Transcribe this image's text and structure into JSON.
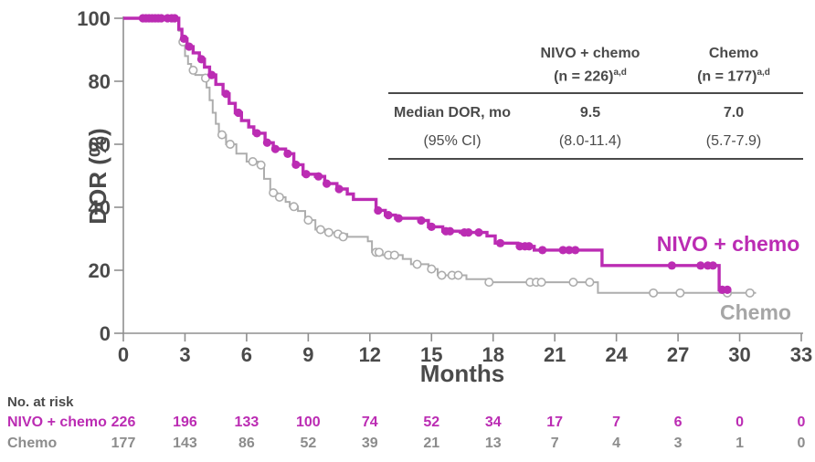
{
  "colors": {
    "nivo_magenta": "#BB2CB3",
    "chemo_curve_gray": "#ADADAD",
    "chemo_label_gray": "#A6A6A6",
    "risk_chemo_gray": "#8C8C8C",
    "axis_line_gray": "#8F8F8F",
    "text_dark_gray": "#4A4A4A"
  },
  "chart_data": {
    "type": "line",
    "subtype": "kaplan-meier-step",
    "xlabel": "Months",
    "ylabel": "DOR (%)",
    "xlim": [
      0,
      33
    ],
    "ylim": [
      0,
      100
    ],
    "xticks": [
      0,
      3,
      6,
      9,
      12,
      15,
      18,
      21,
      24,
      27,
      30,
      33
    ],
    "yticks": [
      0,
      20,
      40,
      60,
      80,
      100
    ],
    "grid": "off",
    "legend": "inline-labels-right",
    "series": [
      {
        "name": "Chemo",
        "color": "#ADADAD",
        "marker": "open-circle",
        "line_width": 2,
        "steps": [
          [
            0,
            100
          ],
          [
            2.6,
            100
          ],
          [
            2.7,
            96
          ],
          [
            2.85,
            92.5
          ],
          [
            3.0,
            88
          ],
          [
            3.15,
            85.5
          ],
          [
            3.3,
            83.5
          ],
          [
            3.5,
            82
          ],
          [
            3.9,
            81
          ],
          [
            4.05,
            78
          ],
          [
            4.2,
            74
          ],
          [
            4.35,
            70
          ],
          [
            4.5,
            66.5
          ],
          [
            4.65,
            63
          ],
          [
            5.0,
            60
          ],
          [
            5.5,
            57
          ],
          [
            6.0,
            54.5
          ],
          [
            6.55,
            53.4
          ],
          [
            6.85,
            49
          ],
          [
            7.15,
            44.6
          ],
          [
            7.5,
            43.2
          ],
          [
            7.9,
            41.7
          ],
          [
            8.1,
            40.2
          ],
          [
            8.5,
            38.8
          ],
          [
            8.85,
            35.9
          ],
          [
            9.35,
            32.9
          ],
          [
            9.9,
            32
          ],
          [
            10.3,
            31.5
          ],
          [
            10.9,
            30.6
          ],
          [
            11.9,
            29.2
          ],
          [
            12.1,
            25.7
          ],
          [
            12.6,
            24.8
          ],
          [
            13.6,
            23.6
          ],
          [
            14.0,
            21.9
          ],
          [
            14.85,
            20.4
          ],
          [
            15.3,
            18.4
          ],
          [
            16.7,
            17.2
          ],
          [
            17.9,
            16.2
          ],
          [
            23.1,
            12.8
          ],
          [
            30.8,
            12.8
          ]
        ],
        "censors": [
          [
            2.9,
            92.5
          ],
          [
            3.4,
            83.5
          ],
          [
            4.0,
            81
          ],
          [
            4.8,
            63
          ],
          [
            5.2,
            60
          ],
          [
            6.3,
            54.5
          ],
          [
            6.7,
            53.4
          ],
          [
            7.3,
            44.6
          ],
          [
            7.6,
            43.2
          ],
          [
            8.3,
            40.2
          ],
          [
            9.0,
            35.9
          ],
          [
            9.6,
            32.9
          ],
          [
            10.0,
            32
          ],
          [
            10.45,
            31.5
          ],
          [
            10.7,
            30.6
          ],
          [
            12.3,
            25.7
          ],
          [
            12.45,
            25.7
          ],
          [
            12.9,
            24.8
          ],
          [
            13.2,
            24.8
          ],
          [
            14.3,
            21.9
          ],
          [
            15.0,
            20.4
          ],
          [
            15.5,
            18.4
          ],
          [
            16.0,
            18.4
          ],
          [
            16.3,
            18.4
          ],
          [
            17.8,
            16.2
          ],
          [
            19.8,
            16.2
          ],
          [
            20.1,
            16.2
          ],
          [
            20.35,
            16.2
          ],
          [
            21.9,
            16.2
          ],
          [
            22.7,
            16.2
          ],
          [
            25.8,
            12.8
          ],
          [
            27.1,
            12.8
          ],
          [
            29.4,
            12.8
          ],
          [
            30.5,
            12.8
          ]
        ]
      },
      {
        "name": "NIVO + chemo",
        "color": "#BB2CB3",
        "marker": "filled-circle",
        "line_width": 3.4,
        "steps": [
          [
            0,
            100
          ],
          [
            2.6,
            100
          ],
          [
            2.7,
            96.5
          ],
          [
            2.85,
            93.5
          ],
          [
            3.1,
            91
          ],
          [
            3.4,
            89
          ],
          [
            3.7,
            87
          ],
          [
            3.95,
            84.5
          ],
          [
            4.2,
            82
          ],
          [
            4.5,
            79
          ],
          [
            4.85,
            76
          ],
          [
            5.15,
            73
          ],
          [
            5.45,
            70
          ],
          [
            5.75,
            67.5
          ],
          [
            6.1,
            65.5
          ],
          [
            6.35,
            63.5
          ],
          [
            6.9,
            60.5
          ],
          [
            7.3,
            58.5
          ],
          [
            7.9,
            57
          ],
          [
            8.3,
            53.5
          ],
          [
            8.75,
            50.5
          ],
          [
            9.35,
            49.8
          ],
          [
            9.8,
            47.5
          ],
          [
            10.4,
            45.8
          ],
          [
            10.9,
            44.2
          ],
          [
            11.2,
            42.5
          ],
          [
            12.3,
            39
          ],
          [
            12.75,
            37.5
          ],
          [
            13.25,
            36.5
          ],
          [
            14.4,
            35.8
          ],
          [
            14.85,
            33.8
          ],
          [
            15.55,
            32.4
          ],
          [
            16.4,
            32
          ],
          [
            17.7,
            30.9
          ],
          [
            18.1,
            28.6
          ],
          [
            19.2,
            27.6
          ],
          [
            20.0,
            26.4
          ],
          [
            23.3,
            21.5
          ],
          [
            29.0,
            13.8
          ],
          [
            29.5,
            13.8
          ]
        ],
        "censors": [
          [
            0.95,
            100
          ],
          [
            1.1,
            100
          ],
          [
            1.25,
            100
          ],
          [
            1.4,
            100
          ],
          [
            1.55,
            100
          ],
          [
            1.7,
            100
          ],
          [
            1.85,
            100
          ],
          [
            2.15,
            100
          ],
          [
            2.35,
            100
          ],
          [
            2.5,
            100
          ],
          [
            2.95,
            93.5
          ],
          [
            3.2,
            91
          ],
          [
            3.8,
            87
          ],
          [
            4.3,
            82
          ],
          [
            5.0,
            76
          ],
          [
            5.6,
            70
          ],
          [
            6.5,
            63.5
          ],
          [
            7.0,
            60.5
          ],
          [
            7.4,
            58.5
          ],
          [
            8.0,
            57
          ],
          [
            8.4,
            53.5
          ],
          [
            8.9,
            50.5
          ],
          [
            9.5,
            49.8
          ],
          [
            9.9,
            47.5
          ],
          [
            10.5,
            45.8
          ],
          [
            12.4,
            39
          ],
          [
            12.9,
            37.5
          ],
          [
            13.4,
            36.5
          ],
          [
            14.5,
            35.8
          ],
          [
            15.0,
            33.8
          ],
          [
            15.7,
            32.4
          ],
          [
            15.9,
            32.4
          ],
          [
            16.6,
            32
          ],
          [
            16.8,
            32
          ],
          [
            17.3,
            32
          ],
          [
            18.35,
            28.6
          ],
          [
            19.3,
            27.6
          ],
          [
            19.55,
            27.6
          ],
          [
            19.75,
            27.6
          ],
          [
            20.4,
            26.4
          ],
          [
            21.4,
            26.4
          ],
          [
            21.7,
            26.4
          ],
          [
            22.0,
            26.4
          ],
          [
            26.7,
            21.5
          ],
          [
            28.1,
            21.5
          ],
          [
            28.45,
            21.5
          ],
          [
            28.7,
            21.5
          ],
          [
            29.15,
            13.8
          ],
          [
            29.4,
            13.8
          ]
        ]
      }
    ]
  },
  "curve_labels": {
    "nivo": "NIVO + chemo",
    "chemo": "Chemo"
  },
  "inset_table": {
    "col_headers": [
      {
        "name": "NIVO + chemo",
        "n": "(n = 226)",
        "sup": "a,d"
      },
      {
        "name": "Chemo",
        "n": "(n = 177)",
        "sup": "a,d"
      }
    ],
    "rows": [
      {
        "label": "Median DOR, mo",
        "values": [
          "9.5",
          "7.0"
        ]
      },
      {
        "label": "(95% CI)",
        "values": [
          "(8.0-11.4)",
          "(5.7-7.9)"
        ]
      }
    ]
  },
  "risk_table": {
    "title": "No. at risk",
    "months": [
      0,
      3,
      6,
      9,
      12,
      15,
      18,
      21,
      24,
      27,
      30,
      33
    ],
    "rows": [
      {
        "label": "NIVO + chemo",
        "color": "#BB2CB3",
        "values": [
          "226",
          "196",
          "133",
          "100",
          "74",
          "52",
          "34",
          "17",
          "7",
          "6",
          "0",
          "0"
        ]
      },
      {
        "label": "Chemo",
        "color": "#8C8C8C",
        "values": [
          "177",
          "143",
          "86",
          "52",
          "39",
          "21",
          "13",
          "7",
          "4",
          "3",
          "1",
          "0"
        ]
      }
    ]
  }
}
